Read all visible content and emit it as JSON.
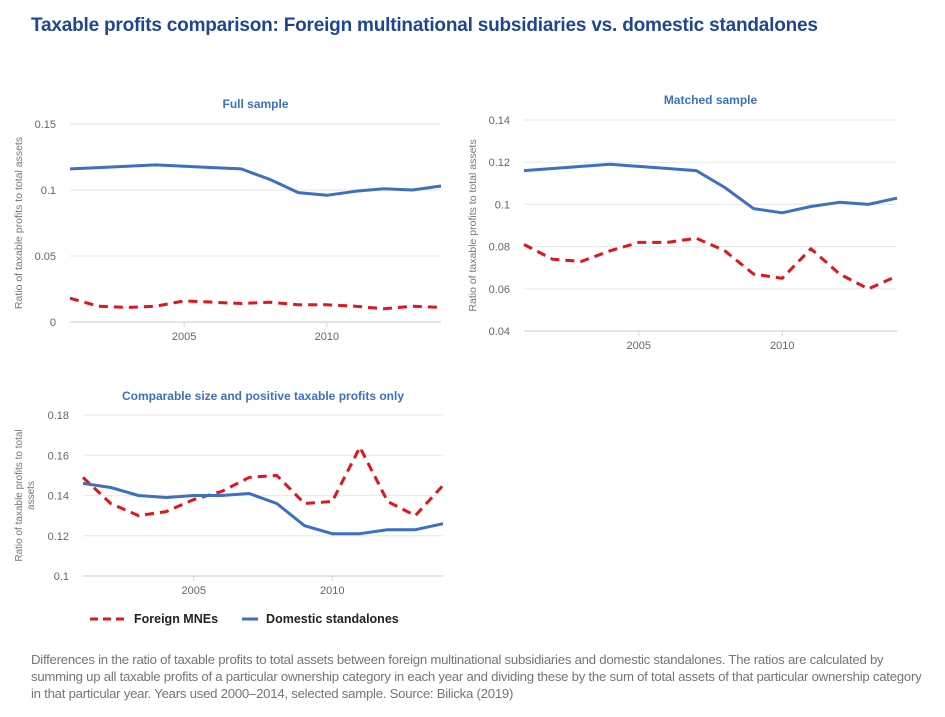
{
  "title": "Taxable profits comparison: Foreign multinational subsidiaries vs. domestic standalones",
  "caption": "Differences in the ratio of taxable profits to total assets between foreign multinational subsidiaries and domestic standalones. The ratios are calculated by summing up all taxable profits of a particular ownership category in each year and dividing these by the sum of total assets of that particular ownership category in that particular year. Years used 2000–2014, selected sample. Source: Bilicka (2019)",
  "colors": {
    "foreign": "#e3151c",
    "domestic": "#3d6fc3",
    "subtitle": "#3d6fc3",
    "title": "#1f4594"
  },
  "legend": [
    {
      "label": "Foreign MNEs",
      "style": "dashed",
      "color": "#e3151c"
    },
    {
      "label": "Domestic standalones",
      "style": "solid",
      "color": "#3d6fc3"
    }
  ],
  "chart_data": [
    {
      "type": "line",
      "title": "Full sample",
      "xlabel": "",
      "ylabel": "Ratio of taxable profits to total assets",
      "x": [
        2001,
        2002,
        2003,
        2004,
        2005,
        2006,
        2007,
        2008,
        2009,
        2010,
        2011,
        2012,
        2013,
        2014
      ],
      "xticks": [
        2005,
        2010
      ],
      "yticks": [
        0,
        0.05,
        0.1,
        0.15
      ],
      "ytick_labels": [
        "0",
        "0.05",
        "0.1",
        "0.15"
      ],
      "ylim": [
        0,
        0.15
      ],
      "grid": true,
      "series": [
        {
          "name": "Foreign MNEs",
          "values": [
            0.018,
            0.012,
            0.011,
            0.012,
            0.016,
            0.015,
            0.014,
            0.015,
            0.013,
            0.013,
            0.012,
            0.01,
            0.012,
            0.011
          ]
        },
        {
          "name": "Domestic standalones",
          "values": [
            0.116,
            0.117,
            0.118,
            0.119,
            0.118,
            0.117,
            0.116,
            0.108,
            0.098,
            0.096,
            0.099,
            0.101,
            0.1,
            0.103
          ]
        }
      ]
    },
    {
      "type": "line",
      "title": "Matched sample",
      "xlabel": "",
      "ylabel": "Ratio of taxable profits to total assets",
      "x": [
        2001,
        2002,
        2003,
        2004,
        2005,
        2006,
        2007,
        2008,
        2009,
        2010,
        2011,
        2012,
        2013,
        2014
      ],
      "xticks": [
        2005,
        2010
      ],
      "yticks": [
        0.04,
        0.06,
        0.08,
        0.1,
        0.12,
        0.14
      ],
      "ytick_labels": [
        "0.04",
        "0.06",
        "0.08",
        "0.1",
        "0.12",
        "0.14"
      ],
      "ylim": [
        0.04,
        0.14
      ],
      "grid": true,
      "series": [
        {
          "name": "Foreign MNEs",
          "values": [
            0.081,
            0.074,
            0.073,
            0.078,
            0.082,
            0.082,
            0.084,
            0.078,
            0.067,
            0.065,
            0.079,
            0.067,
            0.06,
            0.066
          ]
        },
        {
          "name": "Domestic standalones",
          "values": [
            0.116,
            0.117,
            0.118,
            0.119,
            0.118,
            0.117,
            0.116,
            0.108,
            0.098,
            0.096,
            0.099,
            0.101,
            0.1,
            0.103
          ]
        }
      ]
    },
    {
      "type": "line",
      "title": "Comparable size and positive taxable profits only",
      "xlabel": "",
      "ylabel": "Ratio of taxable profits to total assets",
      "x": [
        2001,
        2002,
        2003,
        2004,
        2005,
        2006,
        2007,
        2008,
        2009,
        2010,
        2011,
        2012,
        2013,
        2014
      ],
      "xticks": [
        2005,
        2010
      ],
      "yticks": [
        0.1,
        0.12,
        0.14,
        0.16,
        0.18
      ],
      "ytick_labels": [
        "0.1",
        "0.12",
        "0.14",
        "0.16",
        "0.18"
      ],
      "ylim": [
        0.1,
        0.18
      ],
      "grid": true,
      "legend_position": "bottom-left",
      "series": [
        {
          "name": "Foreign MNEs",
          "values": [
            0.149,
            0.136,
            0.13,
            0.132,
            0.138,
            0.142,
            0.149,
            0.15,
            0.136,
            0.137,
            0.164,
            0.137,
            0.13,
            0.145
          ]
        },
        {
          "name": "Domestic standalones",
          "values": [
            0.146,
            0.144,
            0.14,
            0.139,
            0.14,
            0.14,
            0.141,
            0.136,
            0.125,
            0.121,
            0.121,
            0.123,
            0.123,
            0.126
          ]
        }
      ]
    }
  ]
}
